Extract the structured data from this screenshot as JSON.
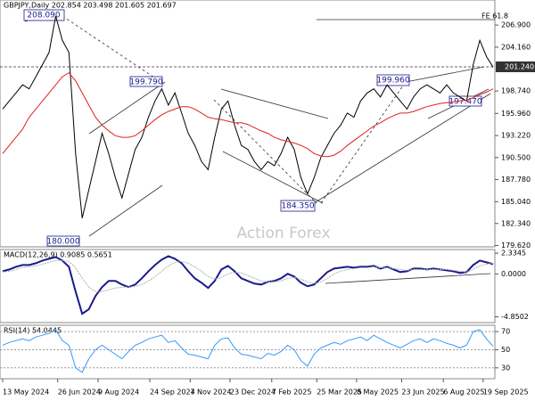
{
  "chart_data": [
    {
      "type": "line",
      "title": "GBPJPY,Daily  202.854 203.498 201.605 201.697",
      "watermark": "Action Forex",
      "price_tag": "201.240",
      "annotations": [
        "208.090",
        "199.790",
        "180.000",
        "184.350",
        "199.960",
        "197.470",
        "FE 61.8"
      ],
      "ylim": [
        179.45,
        210.0
      ],
      "yticks": [
        {
          "value": 179.62,
          "label": "179.620"
        },
        {
          "value": 182.34,
          "label": "182.340"
        },
        {
          "value": 185.04,
          "label": "185.040"
        },
        {
          "value": 187.78,
          "label": "187.780"
        },
        {
          "value": 190.5,
          "label": "190.500"
        },
        {
          "value": 193.22,
          "label": "193.220"
        },
        {
          "value": 195.96,
          "label": "195.960"
        },
        {
          "value": 198.74,
          "label": "198.740"
        },
        {
          "value": 204.16,
          "label": "204.160"
        },
        {
          "value": 206.9,
          "label": "206.900"
        }
      ],
      "series": [
        {
          "color": "#000000",
          "values": [
            196.5,
            197.5,
            198.5,
            199.5,
            199.0,
            200.5,
            202.0,
            203.5,
            208.0,
            205.0,
            203.5,
            191.0,
            183.0,
            186.5,
            190.0,
            193.5,
            191.0,
            188.0,
            185.5,
            188.5,
            191.5,
            193.0,
            195.5,
            197.5,
            199.0,
            197.0,
            198.5,
            196.0,
            193.5,
            192.0,
            190.0,
            189.0,
            193.0,
            196.5,
            197.5,
            194.5,
            192.0,
            191.5,
            190.0,
            189.0,
            190.0,
            189.5,
            191.0,
            193.0,
            191.5,
            188.0,
            186.0,
            188.0,
            190.5,
            192.0,
            193.5,
            194.5,
            196.0,
            195.5,
            197.5,
            198.5,
            199.0,
            198.0,
            199.5,
            198.5,
            197.5,
            196.5,
            198.0,
            199.0,
            199.5,
            199.0,
            198.5,
            199.5,
            198.5,
            198.0,
            197.5,
            202.0,
            205.0,
            203.0,
            201.7
          ]
        },
        {
          "color": "#e02020",
          "values": [
            191.0,
            192.0,
            193.0,
            194.0,
            195.5,
            196.5,
            197.5,
            198.5,
            199.5,
            200.5,
            201.0,
            200.0,
            198.5,
            197.0,
            195.5,
            194.5,
            193.8,
            193.2,
            193.0,
            193.0,
            193.2,
            193.8,
            194.5,
            195.2,
            195.8,
            196.2,
            196.5,
            196.8,
            196.8,
            196.5,
            196.0,
            195.5,
            195.3,
            195.2,
            195.0,
            194.8,
            194.8,
            194.6,
            194.2,
            193.8,
            193.5,
            193.0,
            192.7,
            192.5,
            192.3,
            192.0,
            191.6,
            191.0,
            190.7,
            190.6,
            190.8,
            191.3,
            192.0,
            192.6,
            193.2,
            193.8,
            194.4,
            194.8,
            195.3,
            195.7,
            196.0,
            196.0,
            196.2,
            196.5,
            196.8,
            197.0,
            197.2,
            197.3,
            197.4,
            197.5,
            197.6,
            197.9,
            198.3,
            198.6,
            199.0
          ]
        }
      ]
    },
    {
      "type": "line",
      "title": "MACD(12,26,9) 0.9085 0.5651",
      "ylim": [
        -5.5,
        2.75
      ],
      "yticks": [
        2.3345,
        {
          "value": 0,
          "label": "0.0000"
        },
        -4.8502
      ],
      "series": [
        {
          "color": "#1a1a8c",
          "values": [
            0.3,
            0.5,
            0.8,
            1.0,
            1.0,
            1.2,
            1.5,
            1.7,
            1.9,
            1.5,
            0.8,
            -2.0,
            -4.5,
            -4.0,
            -2.5,
            -1.5,
            -0.8,
            -0.8,
            -1.2,
            -1.5,
            -1.2,
            -0.5,
            0.3,
            1.0,
            1.6,
            2.0,
            1.7,
            1.2,
            0.3,
            -0.5,
            -1.0,
            -1.6,
            -0.8,
            0.5,
            0.9,
            0.3,
            -0.5,
            -0.8,
            -1.1,
            -1.2,
            -0.9,
            -0.8,
            -0.5,
            0.0,
            -0.3,
            -1.0,
            -1.4,
            -1.2,
            -0.5,
            0.2,
            0.6,
            0.7,
            0.8,
            0.7,
            0.8,
            0.8,
            0.9,
            0.6,
            0.8,
            0.5,
            0.2,
            0.3,
            0.6,
            0.6,
            0.5,
            0.6,
            0.5,
            0.4,
            0.3,
            0.1,
            0.2,
            1.0,
            1.5,
            1.3,
            1.1
          ]
        },
        {
          "color": "#b0b0b0",
          "values": [
            0.2,
            0.3,
            0.5,
            0.7,
            0.8,
            0.9,
            1.1,
            1.3,
            1.5,
            1.5,
            1.4,
            0.7,
            -0.5,
            -1.5,
            -2.0,
            -2.0,
            -1.8,
            -1.6,
            -1.5,
            -1.5,
            -1.4,
            -1.2,
            -0.8,
            -0.3,
            0.3,
            0.9,
            1.3,
            1.4,
            1.2,
            0.8,
            0.3,
            -0.3,
            -0.6,
            -0.4,
            0.0,
            0.2,
            0.1,
            -0.2,
            -0.5,
            -0.8,
            -0.9,
            -0.9,
            -0.8,
            -0.5,
            -0.4,
            -0.6,
            -0.9,
            -1.1,
            -0.9,
            -0.5,
            0.0,
            0.3,
            0.5,
            0.6,
            0.7,
            0.7,
            0.8,
            0.7,
            0.7,
            0.6,
            0.5,
            0.4,
            0.5,
            0.5,
            0.5,
            0.5,
            0.5,
            0.5,
            0.4,
            0.3,
            0.2,
            0.5,
            0.9,
            1.1,
            1.2
          ]
        }
      ]
    },
    {
      "type": "line",
      "title": "RSI(14) 54.0445",
      "ylim": [
        18,
        77
      ],
      "yticks": [
        30,
        50,
        70
      ],
      "grid": true,
      "xlim": [
        0,
        74
      ],
      "xticks": [
        {
          "value": 0,
          "label": "13 May 2024"
        },
        {
          "value": 8.3,
          "label": "26 Jun 2024"
        },
        {
          "value": 14.4,
          "label": "9 Aug 2024"
        },
        {
          "value": 22.2,
          "label": "24 Sep 2024"
        },
        {
          "value": 28.3,
          "label": "7 Nov 2024"
        },
        {
          "value": 34.3,
          "label": "23 Dec 2024"
        },
        {
          "value": 40.6,
          "label": "7 Feb 2025"
        },
        {
          "value": 47.4,
          "label": "25 Mar 2025"
        },
        {
          "value": 53.4,
          "label": "8 May 2025"
        },
        {
          "value": 60.2,
          "label": "23 Jun 2025"
        },
        {
          "value": 66.5,
          "label": "6 Aug 2025"
        },
        {
          "value": 72.5,
          "label": "19 Sep 2025"
        }
      ],
      "series": [
        {
          "color": "#3399ff",
          "values": [
            55,
            58,
            60,
            62,
            60,
            64,
            66,
            68,
            72,
            60,
            55,
            30,
            25,
            40,
            50,
            55,
            50,
            45,
            40,
            48,
            55,
            58,
            62,
            64,
            66,
            58,
            60,
            52,
            45,
            44,
            42,
            40,
            55,
            62,
            63,
            52,
            45,
            44,
            42,
            40,
            46,
            44,
            48,
            55,
            50,
            38,
            32,
            45,
            52,
            55,
            58,
            56,
            60,
            62,
            64,
            60,
            66,
            62,
            58,
            55,
            52,
            56,
            60,
            62,
            58,
            62,
            60,
            57,
            55,
            52,
            55,
            70,
            72,
            62,
            54
          ]
        }
      ]
    }
  ]
}
